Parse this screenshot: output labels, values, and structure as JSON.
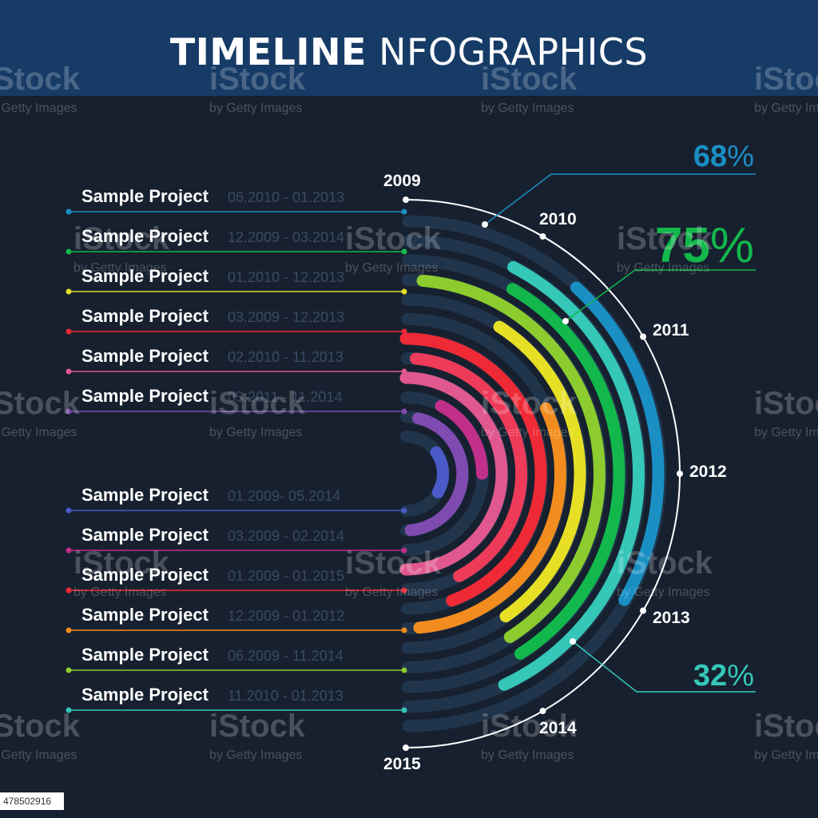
{
  "header": {
    "title_bold": "TIMELINE",
    "title_light": " NFOGRAPHICS"
  },
  "colors": {
    "background": "#17202f",
    "header": "#163b66",
    "track": "#20354b",
    "date_text": "#3a4a63"
  },
  "projects": [
    {
      "name": "Sample Project",
      "dates": "06.2010 - 01.2013",
      "color": "#1a8fc4"
    },
    {
      "name": "Sample Project",
      "dates": "12.2009 - 03.2014",
      "color": "#35c7b8"
    },
    {
      "name": "Sample Project",
      "dates": "01.2010 - 12.2013",
      "color": "#12b84c"
    },
    {
      "name": "Sample Project",
      "dates": "03.2009 - 12.2013",
      "color": "#8ccc2e"
    },
    {
      "name": "Sample Project",
      "dates": "02.2010 - 11.2013",
      "color": "#e6df24"
    },
    {
      "name": "Sample Project",
      "dates": "03.2011 - 11.2014",
      "color": "#f28c1e"
    },
    {
      "name": "Sample Project",
      "dates": "01.2009- 05.2014",
      "color": "#ef2a36"
    },
    {
      "name": "Sample Project",
      "dates": "03.2009 - 02.2014",
      "color": "#ee3b59"
    },
    {
      "name": "Sample Project",
      "dates": "01.2009 - 01.2015",
      "color": "#e0588f"
    },
    {
      "name": "Sample Project",
      "dates": "12.2009 - 01.2012",
      "color": "#c02f89"
    },
    {
      "name": "Sample Project",
      "dates": "06.2009 - 11.2014",
      "color": "#7f4bb0"
    },
    {
      "name": "Sample Project",
      "dates": "11.2010 - 01.2013",
      "color": "#4a5ac8"
    }
  ],
  "years": [
    "2009",
    "2010",
    "2011",
    "2012",
    "2013",
    "2014",
    "2015"
  ],
  "percents": [
    {
      "value": "68",
      "sign": "%",
      "color": "#1a8fc4"
    },
    {
      "value": "75",
      "sign": "%",
      "color": "#12b84c"
    },
    {
      "value": "32",
      "sign": "%",
      "color": "#35c7b8"
    }
  ],
  "watermark": {
    "brand": "iStock",
    "tagline": "by Getty Images",
    "id": "478502916"
  }
}
